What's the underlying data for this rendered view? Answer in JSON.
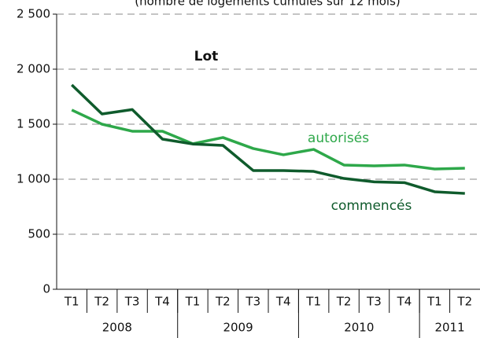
{
  "chart_data": {
    "type": "line",
    "subtitle": "(nombre de logements cumulés sur 12 mois)",
    "annotation": "Lot",
    "categories": [
      "T1",
      "T2",
      "T3",
      "T4",
      "T1",
      "T2",
      "T3",
      "T4",
      "T1",
      "T2",
      "T3",
      "T4",
      "T1",
      "T2"
    ],
    "groups": [
      {
        "name": "2008",
        "count": 4
      },
      {
        "name": "2009",
        "count": 4
      },
      {
        "name": "2010",
        "count": 4
      },
      {
        "name": "2011",
        "count": 2
      }
    ],
    "series": [
      {
        "name": "autorisés",
        "color": "#2ea84a",
        "values": [
          1629,
          1500,
          1436,
          1436,
          1322,
          1379,
          1279,
          1222,
          1271,
          1129,
          1121,
          1129,
          1093,
          1100
        ]
      },
      {
        "name": "commencés",
        "color": "#0f5b2c",
        "values": [
          1857,
          1593,
          1633,
          1364,
          1320,
          1307,
          1079,
          1079,
          1071,
          1007,
          976,
          969,
          886,
          871
        ]
      }
    ],
    "ylim": [
      0,
      2500
    ],
    "yticks": [
      0,
      500,
      {
        "value": 1000,
        "label": "1 000"
      },
      {
        "value": 1500,
        "label": "1 500"
      },
      {
        "value": 2000,
        "label": "2 000"
      },
      {
        "value": 2500,
        "label": "2 500"
      }
    ],
    "grid": true
  }
}
